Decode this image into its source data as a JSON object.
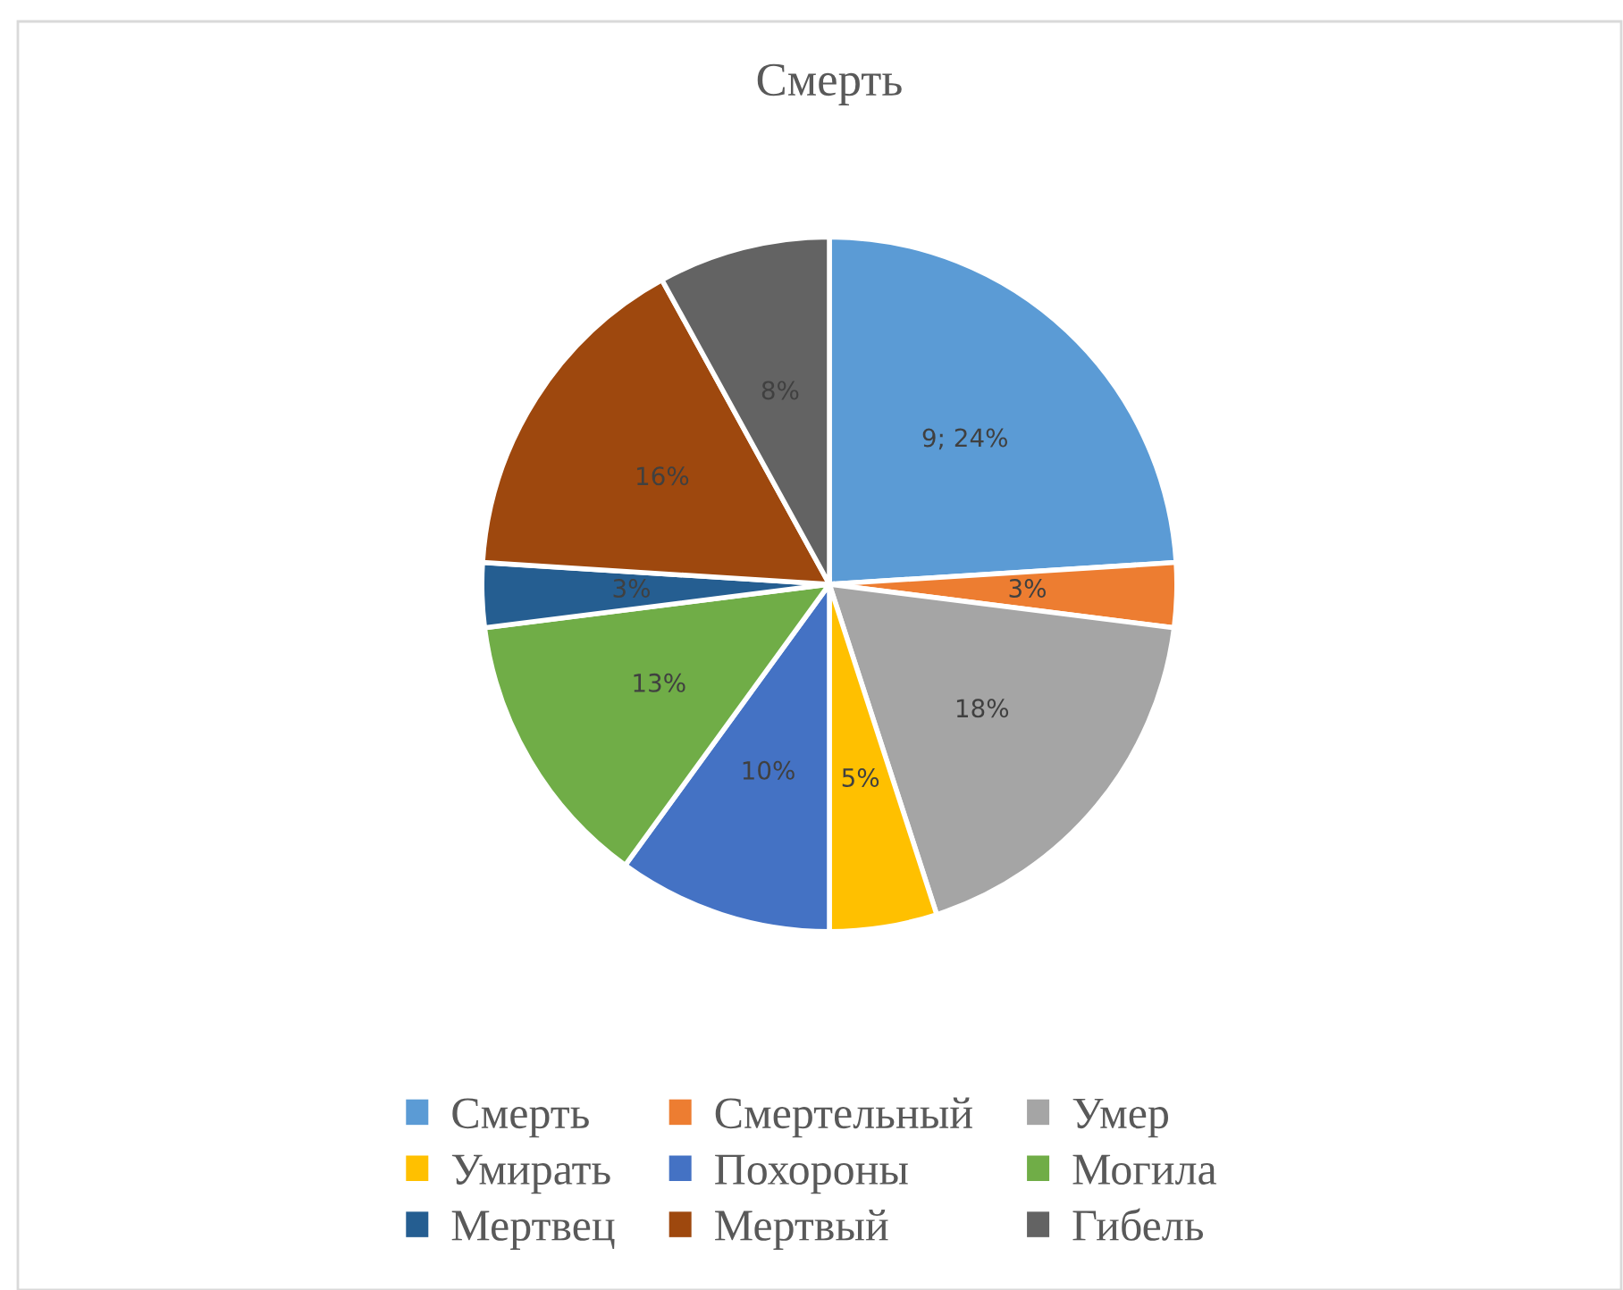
{
  "chart_data": {
    "type": "pie",
    "title": "Смерть",
    "categories": [
      "Смерть",
      "Смертельный",
      "Умер",
      "Умирать",
      "Похороны",
      "Могила",
      "Мертвец",
      "Мертвый",
      "Гибель"
    ],
    "values": [
      24,
      3,
      18,
      5,
      10,
      13,
      3,
      16,
      8
    ],
    "value_labels": [
      "9; 24%",
      "3%",
      "18%",
      "5%",
      "10%",
      "13%",
      "3%",
      "16%",
      "8%"
    ],
    "colors": [
      "#5b9bd5",
      "#ed7d31",
      "#a5a5a5",
      "#ffc000",
      "#4472c4",
      "#70ad47",
      "#255e91",
      "#9e480e",
      "#636363"
    ],
    "legend": "bottom"
  }
}
